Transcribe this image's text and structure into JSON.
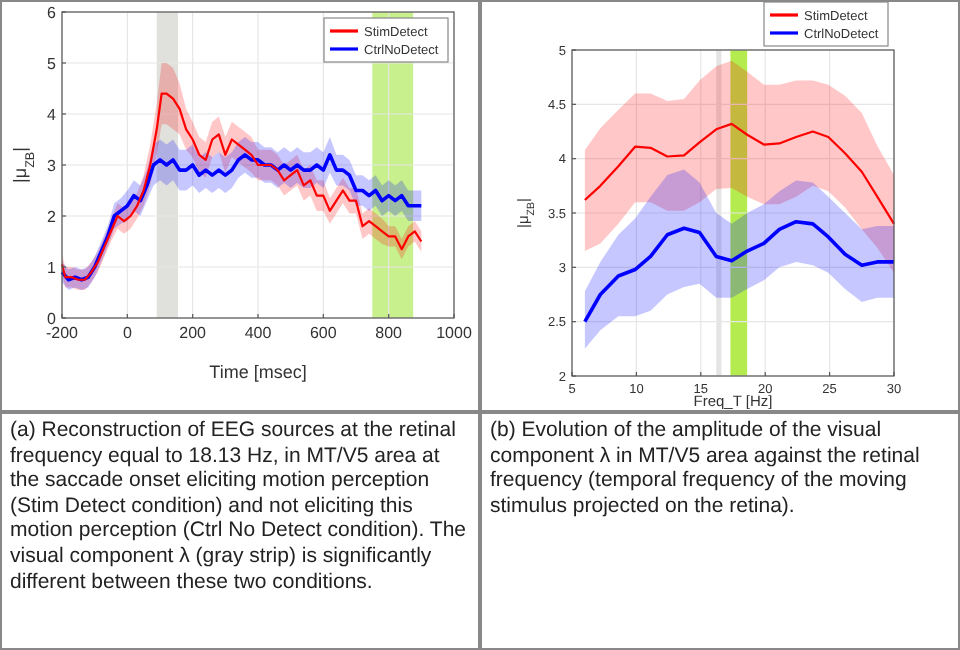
{
  "chart_data": [
    {
      "type": "line",
      "xlabel": "Time [msec]",
      "ylabel": "|μ$_{ZB}$|",
      "xlim": [
        -200,
        1000
      ],
      "xticks": [
        -200,
        0,
        200,
        400,
        600,
        800,
        1000
      ],
      "ylim": [
        0,
        6
      ],
      "yticks": [
        0,
        1,
        2,
        3,
        4,
        5,
        6
      ],
      "grid": true,
      "legend": "top right",
      "bands": [
        {
          "axis": "x",
          "from": 90,
          "to": 155,
          "color": "#e0e0dc"
        },
        {
          "axis": "x",
          "from": 750,
          "to": 875,
          "color": "#c8f08c"
        }
      ],
      "annotations": [
        "(a) Reconstruction of EEG sources at the retinal frequency equal to 18.13 Hz, in MT/V5 area at the saccade onset eliciting motion perception (Stim Detect condition) and not eliciting this motion perception (Ctrl No Detect condition). The visual component λ (gray strip) is significantly different between these two conditions."
      ],
      "series": [
        {
          "name": "StimDetect",
          "color": "#ff0000",
          "x": [
            -200,
            -190,
            -170,
            -150,
            -130,
            -110,
            -90,
            -70,
            -50,
            -30,
            -10,
            10,
            30,
            50,
            70,
            90,
            105,
            120,
            140,
            160,
            180,
            200,
            220,
            240,
            260,
            280,
            300,
            320,
            340,
            360,
            380,
            400,
            420,
            440,
            460,
            480,
            500,
            520,
            540,
            560,
            580,
            600,
            620,
            640,
            660,
            680,
            700,
            720,
            740,
            760,
            780,
            800,
            820,
            840,
            860,
            880,
            900
          ],
          "values": [
            1.05,
            0.8,
            0.8,
            0.75,
            0.75,
            0.9,
            1.1,
            1.4,
            1.7,
            2.0,
            1.9,
            2.0,
            2.2,
            2.5,
            3.0,
            3.7,
            4.4,
            4.4,
            4.3,
            4.1,
            3.7,
            3.5,
            3.2,
            3.1,
            3.5,
            3.6,
            3.2,
            3.5,
            3.4,
            3.3,
            3.2,
            3.0,
            3.0,
            3.0,
            2.9,
            2.7,
            2.8,
            2.9,
            2.6,
            2.7,
            2.4,
            2.4,
            2.1,
            2.3,
            2.5,
            2.3,
            2.3,
            1.8,
            1.9,
            1.8,
            1.7,
            1.6,
            1.6,
            1.35,
            1.6,
            1.7,
            1.5
          ],
          "lower": [
            0.85,
            0.6,
            0.6,
            0.55,
            0.55,
            0.7,
            0.9,
            1.2,
            1.5,
            1.75,
            1.65,
            1.75,
            1.95,
            2.2,
            2.6,
            3.2,
            3.8,
            3.8,
            3.7,
            3.6,
            3.3,
            3.15,
            2.85,
            2.75,
            3.15,
            3.25,
            2.85,
            3.15,
            3.05,
            2.95,
            2.85,
            2.7,
            2.7,
            2.7,
            2.6,
            2.4,
            2.5,
            2.6,
            2.3,
            2.4,
            2.1,
            2.1,
            1.85,
            2.05,
            2.25,
            2.05,
            2.05,
            1.55,
            1.65,
            1.55,
            1.45,
            1.4,
            1.4,
            1.15,
            1.4,
            1.5,
            1.3
          ],
          "upper": [
            1.25,
            1.0,
            1.0,
            0.95,
            0.95,
            1.1,
            1.3,
            1.6,
            1.9,
            2.25,
            2.15,
            2.25,
            2.45,
            2.8,
            3.4,
            4.2,
            5.0,
            5.0,
            4.9,
            4.6,
            4.1,
            3.85,
            3.55,
            3.45,
            3.85,
            3.95,
            3.55,
            3.85,
            3.75,
            3.65,
            3.55,
            3.3,
            3.3,
            3.3,
            3.2,
            3.0,
            3.1,
            3.2,
            2.9,
            3.0,
            2.7,
            2.7,
            2.35,
            2.55,
            2.75,
            2.55,
            2.55,
            2.05,
            2.15,
            2.05,
            1.95,
            1.8,
            1.8,
            1.55,
            1.8,
            1.9,
            1.7
          ]
        },
        {
          "name": "CtrlNoDetect",
          "color": "#0000ff",
          "x": [
            -200,
            -180,
            -160,
            -140,
            -120,
            -100,
            -80,
            -60,
            -40,
            -20,
            0,
            20,
            40,
            60,
            80,
            100,
            120,
            140,
            160,
            180,
            200,
            220,
            240,
            260,
            280,
            300,
            320,
            340,
            360,
            380,
            400,
            420,
            440,
            460,
            480,
            500,
            520,
            540,
            560,
            580,
            600,
            620,
            640,
            660,
            680,
            700,
            720,
            740,
            760,
            780,
            800,
            820,
            840,
            860,
            880,
            900
          ],
          "values": [
            0.9,
            0.75,
            0.8,
            0.75,
            0.8,
            1.0,
            1.3,
            1.6,
            2.0,
            2.1,
            2.2,
            2.4,
            2.3,
            2.6,
            3.0,
            3.1,
            3.0,
            3.1,
            2.9,
            2.9,
            3.0,
            2.8,
            2.9,
            2.8,
            2.9,
            2.8,
            2.9,
            3.1,
            3.2,
            3.1,
            3.1,
            3.0,
            3.0,
            2.9,
            3.0,
            2.9,
            3.0,
            2.9,
            2.9,
            3.0,
            2.9,
            3.2,
            2.9,
            2.9,
            2.8,
            2.5,
            2.5,
            2.4,
            2.5,
            2.3,
            2.4,
            2.3,
            2.4,
            2.2,
            2.2,
            2.2
          ],
          "lower": [
            0.7,
            0.55,
            0.6,
            0.55,
            0.6,
            0.8,
            1.1,
            1.4,
            1.75,
            1.85,
            1.9,
            2.1,
            2.0,
            2.3,
            2.6,
            2.7,
            2.6,
            2.7,
            2.5,
            2.5,
            2.6,
            2.45,
            2.55,
            2.45,
            2.55,
            2.45,
            2.55,
            2.75,
            2.85,
            2.75,
            2.75,
            2.65,
            2.65,
            2.55,
            2.65,
            2.55,
            2.65,
            2.55,
            2.55,
            2.65,
            2.55,
            2.85,
            2.6,
            2.6,
            2.5,
            2.2,
            2.2,
            2.1,
            2.2,
            2.0,
            2.1,
            2.0,
            2.1,
            1.9,
            1.9,
            1.9
          ],
          "upper": [
            1.1,
            0.95,
            1.0,
            0.95,
            1.0,
            1.2,
            1.5,
            1.8,
            2.25,
            2.35,
            2.5,
            2.7,
            2.6,
            2.9,
            3.4,
            3.5,
            3.4,
            3.5,
            3.3,
            3.3,
            3.4,
            3.15,
            3.25,
            3.15,
            3.25,
            3.15,
            3.25,
            3.45,
            3.55,
            3.45,
            3.45,
            3.35,
            3.35,
            3.25,
            3.35,
            3.25,
            3.35,
            3.25,
            3.25,
            3.35,
            3.25,
            3.55,
            3.2,
            3.2,
            3.1,
            2.8,
            2.8,
            2.7,
            2.8,
            2.6,
            2.7,
            2.6,
            2.7,
            2.5,
            2.5,
            2.5
          ]
        }
      ]
    },
    {
      "type": "line",
      "xlabel": "Freq_T [Hz]",
      "ylabel": "|μ$_{ZB}$|",
      "xlim": [
        5,
        30
      ],
      "xticks": [
        5,
        10,
        15,
        20,
        25,
        30
      ],
      "ylim": [
        2,
        5
      ],
      "yticks": [
        2,
        2.5,
        3,
        3.5,
        4,
        4.5,
        5
      ],
      "grid": true,
      "legend": "top right",
      "bands": [
        {
          "axis": "x",
          "from": 16.2,
          "to": 16.6,
          "color": "#e4e4e4"
        },
        {
          "axis": "x",
          "from": 17.3,
          "to": 18.6,
          "color": "#b4ec50"
        }
      ],
      "annotations": [
        "(b) Evolution of the amplitude of the visual component λ in MT/V5 area against the retinal frequency (temporal frequency of the moving stimulus projected on the retina)."
      ],
      "x": [
        6,
        7.2,
        8.6,
        9.9,
        11.1,
        12.4,
        13.7,
        14.9,
        16.2,
        17.4,
        18.6,
        19.9,
        21.1,
        22.4,
        23.7,
        24.9,
        26.2,
        27.5,
        28.7,
        30
      ],
      "series": [
        {
          "name": "StimDetect",
          "color": "#ff0000",
          "values": [
            3.62,
            3.75,
            3.93,
            4.11,
            4.1,
            4.02,
            4.03,
            4.15,
            4.27,
            4.32,
            4.22,
            4.13,
            4.14,
            4.2,
            4.25,
            4.2,
            4.05,
            3.88,
            3.65,
            3.4
          ],
          "lower": [
            3.15,
            3.22,
            3.4,
            3.6,
            3.6,
            3.52,
            3.52,
            3.6,
            3.72,
            3.73,
            3.65,
            3.58,
            3.58,
            3.65,
            3.75,
            3.7,
            3.55,
            3.35,
            3.18,
            2.95
          ],
          "upper": [
            4.08,
            4.28,
            4.45,
            4.6,
            4.6,
            4.53,
            4.55,
            4.72,
            4.85,
            4.9,
            4.8,
            4.68,
            4.68,
            4.72,
            4.72,
            4.68,
            4.58,
            4.42,
            4.12,
            3.85
          ]
        },
        {
          "name": "CtrlNoDetect",
          "color": "#0000ff",
          "values": [
            2.5,
            2.75,
            2.92,
            2.98,
            3.1,
            3.3,
            3.36,
            3.32,
            3.1,
            3.06,
            3.15,
            3.22,
            3.35,
            3.42,
            3.4,
            3.28,
            3.12,
            3.02,
            3.05,
            3.05
          ],
          "lower": [
            2.25,
            2.42,
            2.55,
            2.55,
            2.6,
            2.75,
            2.82,
            2.85,
            2.72,
            2.72,
            2.8,
            2.88,
            3.0,
            3.05,
            3.02,
            2.95,
            2.8,
            2.68,
            2.72,
            2.72
          ],
          "upper": [
            2.78,
            3.05,
            3.3,
            3.45,
            3.65,
            3.85,
            3.9,
            3.78,
            3.5,
            3.4,
            3.5,
            3.58,
            3.7,
            3.8,
            3.78,
            3.65,
            3.5,
            3.35,
            3.38,
            3.38
          ]
        }
      ]
    }
  ]
}
